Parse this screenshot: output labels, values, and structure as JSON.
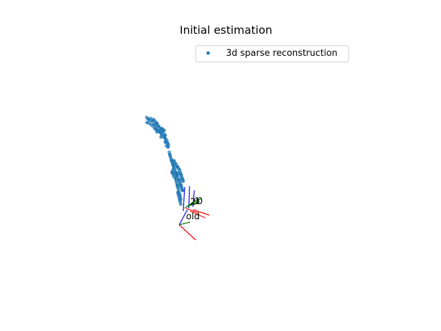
{
  "chart_data": {
    "type": "scatter",
    "title": "Initial estimation",
    "legend": {
      "placement": "top-right",
      "entries": [
        "3d sparse reconstruction"
      ]
    },
    "grid": false,
    "axes_visible": false,
    "colors": {
      "points": "#1f77b4",
      "axis_x": "#ff0000",
      "axis_y": "#008000",
      "axis_z": "#0000ff"
    },
    "series": [
      {
        "name": "3d sparse reconstruction",
        "points": [
          [
            -1.6,
            1.9
          ],
          [
            -1.55,
            1.85
          ],
          [
            -1.5,
            1.8
          ],
          [
            -1.45,
            1.86
          ],
          [
            -1.4,
            1.78
          ],
          [
            -1.35,
            1.82
          ],
          [
            -1.3,
            1.75
          ],
          [
            -1.25,
            1.7
          ],
          [
            -1.58,
            1.72
          ],
          [
            -1.48,
            1.68
          ],
          [
            -1.42,
            1.62
          ],
          [
            -1.36,
            1.66
          ],
          [
            -1.28,
            1.6
          ],
          [
            -1.22,
            1.64
          ],
          [
            -1.18,
            1.58
          ],
          [
            -1.12,
            1.52
          ],
          [
            -1.2,
            1.45
          ],
          [
            -1.15,
            1.4
          ],
          [
            -1.1,
            1.36
          ],
          [
            -1.05,
            1.42
          ],
          [
            -1.0,
            1.33
          ],
          [
            -0.96,
            1.28
          ],
          [
            -1.08,
            1.3
          ],
          [
            -1.02,
            1.25
          ],
          [
            -0.98,
            1.2
          ],
          [
            -0.94,
            1.15
          ],
          [
            -0.9,
            1.1
          ],
          [
            -0.95,
            1.05
          ],
          [
            -0.88,
            1.02
          ],
          [
            -0.85,
            0.96
          ],
          [
            -0.92,
            0.92
          ],
          [
            -0.86,
            0.88
          ],
          [
            -1.3,
            1.5
          ],
          [
            -1.34,
            1.55
          ],
          [
            -1.26,
            1.48
          ],
          [
            -1.24,
            1.4
          ],
          [
            -1.14,
            1.46
          ],
          [
            -1.06,
            1.5
          ],
          [
            -1.0,
            1.45
          ],
          [
            -1.1,
            1.22
          ],
          [
            -0.82,
            0.7
          ],
          [
            -0.8,
            0.62
          ],
          [
            -0.78,
            0.55
          ],
          [
            -0.76,
            0.48
          ],
          [
            -0.74,
            0.42
          ],
          [
            -0.72,
            0.36
          ],
          [
            -0.7,
            0.3
          ],
          [
            -0.68,
            0.24
          ],
          [
            -0.66,
            0.18
          ],
          [
            -0.64,
            0.12
          ],
          [
            -0.62,
            0.06
          ],
          [
            -0.6,
            0.0
          ],
          [
            -0.58,
            -0.06
          ],
          [
            -0.56,
            -0.12
          ],
          [
            -0.6,
            -0.2
          ],
          [
            -0.58,
            -0.28
          ],
          [
            -0.56,
            -0.36
          ],
          [
            -0.54,
            -0.44
          ],
          [
            -0.52,
            -0.52
          ],
          [
            -0.5,
            -0.6
          ],
          [
            -0.48,
            -0.68
          ],
          [
            -0.46,
            -0.76
          ],
          [
            -0.44,
            -0.84
          ],
          [
            -0.42,
            -0.92
          ],
          [
            -0.66,
            0.4
          ],
          [
            -0.62,
            0.32
          ],
          [
            -0.58,
            0.28
          ],
          [
            -0.54,
            0.2
          ],
          [
            -0.5,
            0.14
          ],
          [
            -0.46,
            0.08
          ],
          [
            -0.44,
            0.0
          ],
          [
            -0.42,
            -0.06
          ],
          [
            -0.4,
            -0.12
          ],
          [
            -0.38,
            -0.18
          ],
          [
            -0.36,
            -0.24
          ],
          [
            -0.34,
            -0.3
          ],
          [
            -0.7,
            0.08
          ],
          [
            -0.72,
            0.0
          ],
          [
            -0.68,
            -0.06
          ],
          [
            -0.66,
            -0.14
          ],
          [
            -0.5,
            -0.2
          ],
          [
            -0.48,
            -0.26
          ],
          [
            -0.46,
            -0.32
          ],
          [
            -0.44,
            -0.38
          ],
          [
            -0.42,
            -0.44
          ],
          [
            -0.4,
            -0.5
          ],
          [
            -0.38,
            -0.56
          ],
          [
            -0.36,
            -0.62
          ],
          [
            -0.52,
            -0.7
          ],
          [
            -0.5,
            -0.78
          ],
          [
            -0.48,
            -0.86
          ],
          [
            -0.46,
            -0.94
          ],
          [
            -0.44,
            -1.02
          ],
          [
            -0.42,
            -1.1
          ],
          [
            -0.54,
            -0.1
          ],
          [
            -0.52,
            -0.02
          ]
        ]
      }
    ],
    "camera_labels": [
      "0",
      "1",
      "2",
      "old"
    ]
  }
}
